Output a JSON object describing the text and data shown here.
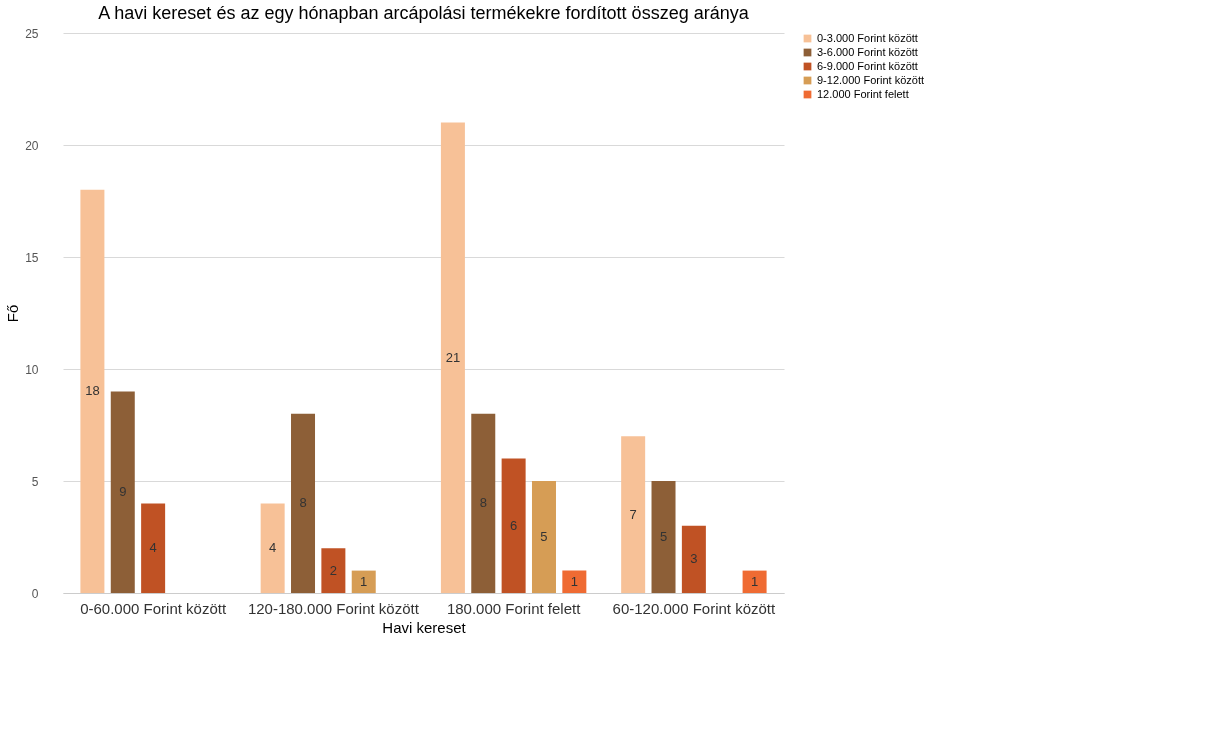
{
  "chart_data": {
    "type": "bar",
    "title": "A havi kereset és az egy hónapban arcápolási termékekre fordított összeg aránya",
    "xlabel": "Havi kereset",
    "ylabel": "Fő",
    "categories": [
      "0-60.000 Forint között",
      "120-180.000 Forint között",
      "180.000 Forint felett",
      "60-120.000 Forint között"
    ],
    "series": [
      {
        "name": "0-3.000 Forint között",
        "color": "#f7c197",
        "values": [
          18,
          4,
          21,
          7
        ]
      },
      {
        "name": "3-6.000 Forint között",
        "color": "#8d5f37",
        "values": [
          9,
          8,
          8,
          5
        ]
      },
      {
        "name": "6-9.000 Forint között",
        "color": "#c05224",
        "values": [
          4,
          2,
          6,
          3
        ]
      },
      {
        "name": "9-12.000 Forint között",
        "color": "#d69d55",
        "values": [
          null,
          1,
          5,
          null
        ]
      },
      {
        "name": "12.000 Forint felett",
        "color": "#ef6b33",
        "values": [
          null,
          null,
          1,
          1
        ]
      }
    ],
    "ylim": [
      0,
      25
    ],
    "yticks": [
      0,
      5,
      10,
      15,
      20,
      25
    ],
    "grid": "y",
    "legend": "right",
    "data_labels": true
  }
}
